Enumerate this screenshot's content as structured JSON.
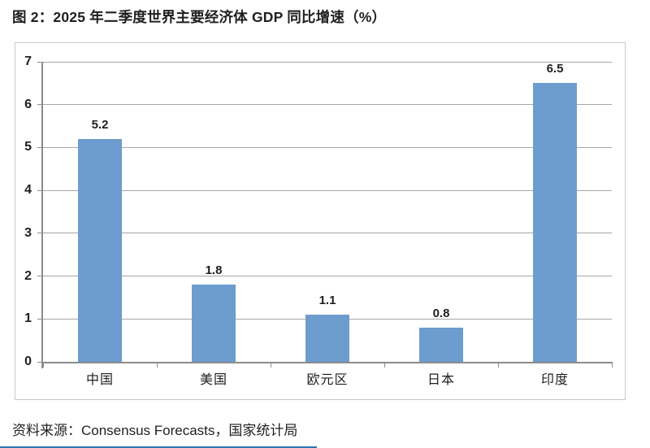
{
  "title": "图 2：2025 年二季度世界主要经济体 GDP 同比增速（%）",
  "source": "资料来源：Consensus Forecasts，国家统计局",
  "colors": {
    "bar": "#6d9cce",
    "grid": "#a6a6a6",
    "axis": "#8c8c8c",
    "frame_border": "#c9c9c9",
    "text": "#1f1f1f",
    "footer_rule": "#2e75b6"
  },
  "chart_data": {
    "type": "bar",
    "title": "图 2：2025 年二季度世界主要经济体 GDP 同比增速（%）",
    "categories": [
      "中国",
      "美国",
      "欧元区",
      "日本",
      "印度"
    ],
    "values": [
      5.2,
      1.8,
      1.1,
      0.8,
      6.5
    ],
    "data_labels": [
      "5.2",
      "1.8",
      "1.1",
      "0.8",
      "6.5"
    ],
    "xlabel": "",
    "ylabel": "",
    "ylim": [
      0,
      7
    ],
    "yticks": [
      0,
      1,
      2,
      3,
      4,
      5,
      6,
      7
    ],
    "grid": true,
    "legend_position": "none",
    "source": "资料来源：Consensus Forecasts，国家统计局"
  }
}
